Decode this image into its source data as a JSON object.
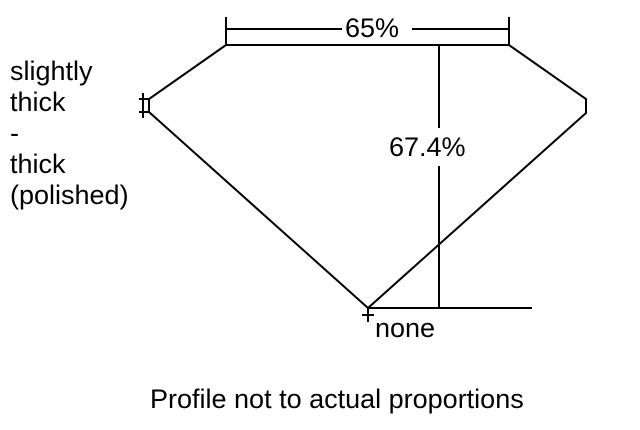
{
  "girdle_label": [
    "slightly",
    "thick",
    "-",
    "thick",
    "(polished)"
  ],
  "table_label": "65%",
  "depth_label": "67.4%",
  "culet_label": "none",
  "caption": "Profile not to actual proportions"
}
